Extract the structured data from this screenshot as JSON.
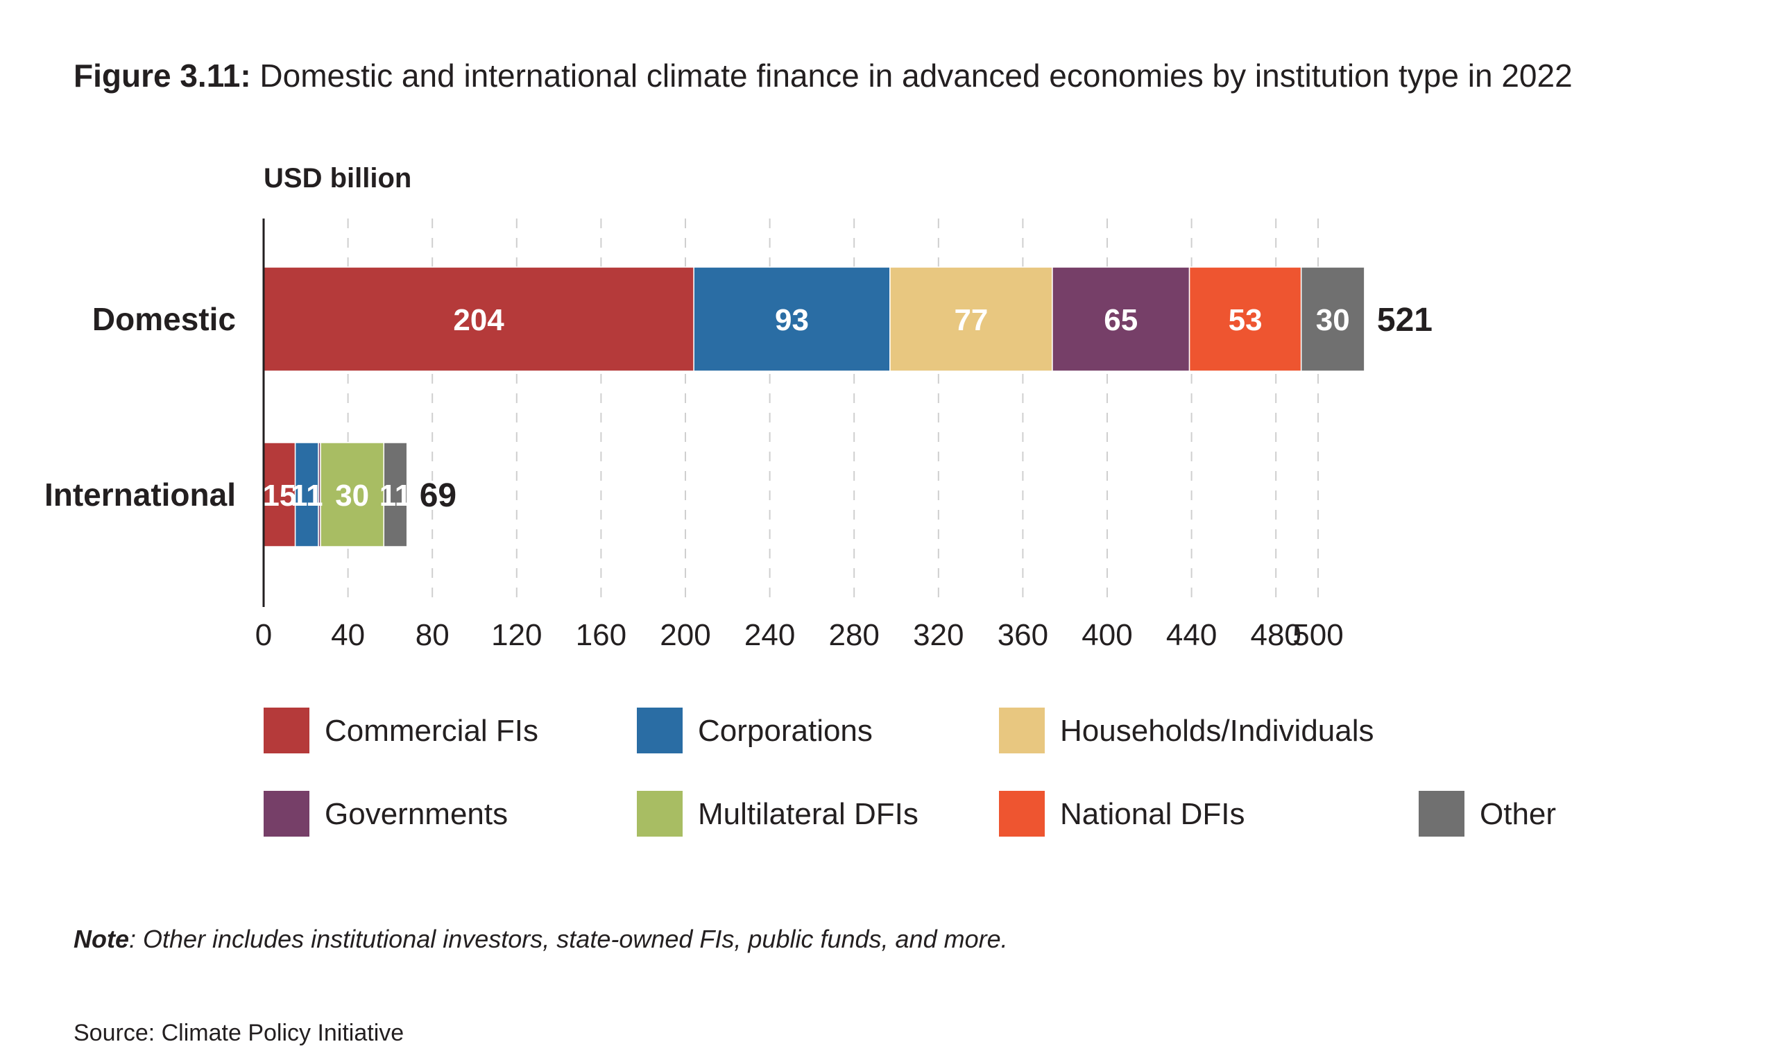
{
  "figure": {
    "label": "Figure 3.11:",
    "title": " Domestic and international climate finance in advanced economies by institution type in 2022"
  },
  "note": {
    "label": "Note",
    "text": ": Other includes institutional investors, state-owned FIs, public funds, and more."
  },
  "source": "Source: Climate Policy Initiative",
  "chart_data": {
    "type": "bar",
    "orientation": "horizontal",
    "stacked": true,
    "ylabel": "USD billion",
    "categories": [
      "Domestic",
      "International"
    ],
    "totals": [
      521,
      69
    ],
    "xlim": [
      0,
      520
    ],
    "xticks": [
      0,
      40,
      80,
      120,
      160,
      200,
      240,
      280,
      320,
      360,
      400,
      440,
      480,
      500
    ],
    "grid": "vertical dashed",
    "legend_position": "bottom",
    "series": [
      {
        "name": "Commercial FIs",
        "color": "#b53a3a",
        "values": [
          204,
          15
        ]
      },
      {
        "name": "Corporations",
        "color": "#2a6da4",
        "values": [
          93,
          11
        ]
      },
      {
        "name": "Households/Individuals",
        "color": "#e8c780",
        "values": [
          77,
          0
        ]
      },
      {
        "name": "Governments",
        "color": "#763f68",
        "values": [
          65,
          1
        ]
      },
      {
        "name": "Multilateral DFIs",
        "color": "#a8bd63",
        "values": [
          0,
          30
        ]
      },
      {
        "name": "National DFIs",
        "color": "#ee5530",
        "values": [
          53,
          0
        ]
      },
      {
        "name": "Other",
        "color": "#707070",
        "values": [
          30,
          11
        ]
      }
    ],
    "segment_labels": [
      [
        "204",
        "93",
        "77",
        "65",
        "",
        "53",
        "30"
      ],
      [
        "15",
        "11",
        "",
        "",
        "30",
        "",
        "11"
      ]
    ]
  }
}
